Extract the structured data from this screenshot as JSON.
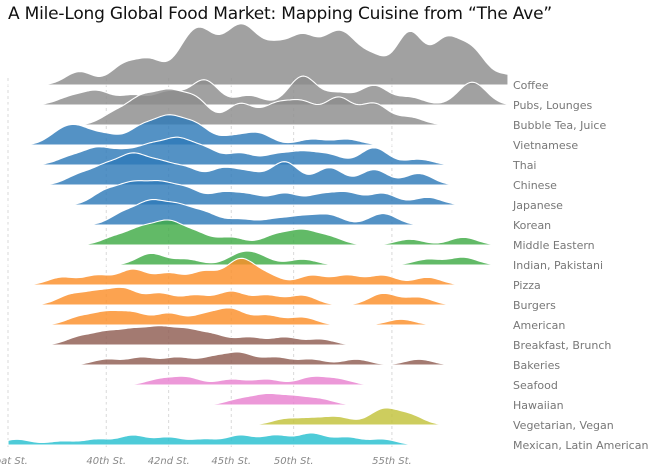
{
  "chart_data": {
    "type": "ridgeline",
    "title": "A Mile-Long Global Food Market: Mapping Cuisine from “The Ave”",
    "xlabel": "",
    "ylabel": "",
    "x_ticks": [
      "Boat St.",
      "40th St.",
      "42nd St.",
      "45th St.",
      "50th St.",
      "55th St."
    ],
    "grid": true,
    "colors": {
      "gray": "#8c8c8c",
      "blue": "#2e7ab8",
      "green": "#3fab45",
      "orange": "#fb8f2a",
      "brown": "#8f5d52",
      "pink": "#e881cf",
      "olive": "#c2c23a",
      "cyan": "#27c0d0"
    },
    "series": [
      {
        "name": "Coffee",
        "color": "gray",
        "peaks": [
          [
            8,
            7
          ],
          [
            13,
            10
          ],
          [
            16,
            12
          ],
          [
            20,
            16
          ],
          [
            22,
            20
          ],
          [
            25,
            18
          ],
          [
            27,
            20
          ],
          [
            30,
            17
          ],
          [
            33,
            22
          ],
          [
            36,
            16
          ],
          [
            38,
            18
          ],
          [
            41,
            13
          ],
          [
            45,
            27
          ],
          [
            49,
            22
          ],
          [
            52,
            17
          ],
          [
            56,
            5
          ]
        ]
      },
      {
        "name": "Pubs, Lounges",
        "color": "gray",
        "peaks": [
          [
            7,
            4
          ],
          [
            10,
            7
          ],
          [
            14,
            5
          ],
          [
            18,
            7
          ],
          [
            22,
            13
          ],
          [
            27,
            5
          ],
          [
            33,
            15
          ],
          [
            37,
            6
          ],
          [
            41,
            10
          ],
          [
            45,
            4
          ],
          [
            52,
            12
          ]
        ]
      },
      {
        "name": "Bubble Tea, Juice",
        "color": "gray",
        "peaks": [
          [
            12,
            6
          ],
          [
            15,
            13
          ],
          [
            18,
            15
          ],
          [
            21,
            13
          ],
          [
            26,
            11
          ],
          [
            30,
            10
          ],
          [
            33,
            11
          ],
          [
            37,
            14
          ],
          [
            41,
            11
          ],
          [
            45,
            4
          ]
        ]
      },
      {
        "name": "Vietnamese",
        "color": "blue",
        "peaks": [
          [
            6,
            6
          ],
          [
            8,
            7
          ],
          [
            11,
            5
          ],
          [
            15,
            9
          ],
          [
            18,
            13
          ],
          [
            21,
            10
          ],
          [
            25,
            4
          ],
          [
            28,
            6
          ],
          [
            34,
            3
          ],
          [
            38,
            3
          ]
        ]
      },
      {
        "name": "Thai",
        "color": "blue",
        "peaks": [
          [
            7,
            4
          ],
          [
            10,
            8
          ],
          [
            13,
            6
          ],
          [
            16,
            9
          ],
          [
            19,
            12
          ],
          [
            22,
            8
          ],
          [
            26,
            6
          ],
          [
            30,
            5
          ],
          [
            33,
            6
          ],
          [
            36,
            5
          ],
          [
            41,
            9
          ],
          [
            46,
            3
          ]
        ]
      },
      {
        "name": "Chinese",
        "color": "blue",
        "peaks": [
          [
            8,
            5
          ],
          [
            11,
            9
          ],
          [
            14,
            14
          ],
          [
            17,
            10
          ],
          [
            20,
            8
          ],
          [
            24,
            8
          ],
          [
            27,
            6
          ],
          [
            31,
            12
          ],
          [
            36,
            9
          ],
          [
            41,
            8
          ],
          [
            46,
            6
          ]
        ]
      },
      {
        "name": "Japanese",
        "color": "blue",
        "peaks": [
          [
            11,
            7
          ],
          [
            14,
            10
          ],
          [
            17,
            10
          ],
          [
            20,
            8
          ],
          [
            24,
            6
          ],
          [
            27,
            5
          ],
          [
            31,
            6
          ],
          [
            35,
            5
          ],
          [
            38,
            6
          ],
          [
            42,
            6
          ],
          [
            47,
            4
          ]
        ]
      },
      {
        "name": "Korean",
        "color": "blue",
        "peaks": [
          [
            13,
            6
          ],
          [
            16,
            11
          ],
          [
            19,
            9
          ],
          [
            22,
            6
          ],
          [
            26,
            3
          ],
          [
            30,
            3
          ],
          [
            33,
            4
          ],
          [
            36,
            5
          ],
          [
            42,
            6
          ]
        ]
      },
      {
        "name": "Middle Eastern",
        "color": "green",
        "peaks": [
          [
            12,
            4
          ],
          [
            15,
            8
          ],
          [
            18,
            11
          ],
          [
            21,
            6
          ],
          [
            25,
            4
          ],
          [
            30,
            5
          ],
          [
            33,
            7
          ],
          [
            36,
            4
          ],
          [
            45,
            3
          ],
          [
            51,
            4
          ]
        ]
      },
      {
        "name": "Indian, Pakistani",
        "color": "green",
        "peaks": [
          [
            16,
            6
          ],
          [
            20,
            3
          ],
          [
            26,
            5
          ],
          [
            28,
            4
          ],
          [
            33,
            3
          ],
          [
            47,
            3
          ],
          [
            51,
            4
          ]
        ]
      },
      {
        "name": "Pizza",
        "color": "orange",
        "peaks": [
          [
            6,
            4
          ],
          [
            10,
            5
          ],
          [
            14,
            8
          ],
          [
            18,
            6
          ],
          [
            22,
            7
          ],
          [
            26,
            13
          ],
          [
            29,
            5
          ],
          [
            34,
            5
          ],
          [
            38,
            5
          ],
          [
            42,
            5
          ],
          [
            47,
            4
          ]
        ]
      },
      {
        "name": "Burgers",
        "color": "orange",
        "peaks": [
          [
            7,
            5
          ],
          [
            10,
            6
          ],
          [
            13,
            8
          ],
          [
            17,
            6
          ],
          [
            21,
            5
          ],
          [
            25,
            7
          ],
          [
            29,
            5
          ],
          [
            33,
            5
          ],
          [
            42,
            6
          ],
          [
            46,
            4
          ]
        ]
      },
      {
        "name": "American",
        "color": "orange",
        "peaks": [
          [
            8,
            4
          ],
          [
            11,
            6
          ],
          [
            14,
            6
          ],
          [
            18,
            6
          ],
          [
            22,
            5
          ],
          [
            25,
            8
          ],
          [
            29,
            5
          ],
          [
            33,
            4
          ],
          [
            44,
            3
          ]
        ]
      },
      {
        "name": "Breakfast, Brunch",
        "color": "brown",
        "peaks": [
          [
            8,
            4
          ],
          [
            11,
            6
          ],
          [
            14,
            7
          ],
          [
            17,
            8
          ],
          [
            20,
            7
          ],
          [
            23,
            5
          ],
          [
            27,
            4
          ],
          [
            31,
            4
          ],
          [
            35,
            3
          ]
        ]
      },
      {
        "name": "Bakeries",
        "color": "brown",
        "peaks": [
          [
            11,
            3
          ],
          [
            15,
            4
          ],
          [
            19,
            4
          ],
          [
            23,
            4
          ],
          [
            26,
            6
          ],
          [
            30,
            4
          ],
          [
            34,
            3
          ],
          [
            39,
            3
          ],
          [
            46,
            3
          ]
        ]
      },
      {
        "name": "Seafood",
        "color": "pink",
        "peaks": [
          [
            17,
            3
          ],
          [
            20,
            4
          ],
          [
            25,
            3
          ],
          [
            29,
            3
          ],
          [
            34,
            4
          ],
          [
            37,
            3
          ]
        ]
      },
      {
        "name": "Hawaiian",
        "color": "pink",
        "peaks": [
          [
            26,
            3
          ],
          [
            29,
            5
          ],
          [
            32,
            4
          ],
          [
            35,
            3
          ]
        ]
      },
      {
        "name": "Vegetarian, Vegan",
        "color": "olive",
        "peaks": [
          [
            31,
            3
          ],
          [
            34,
            3
          ],
          [
            37,
            4
          ],
          [
            42,
            8
          ],
          [
            45,
            5
          ]
        ]
      },
      {
        "name": "Mexican, Latin American",
        "color": "cyan",
        "peaks": [
          [
            1,
            3
          ],
          [
            6,
            2
          ],
          [
            10,
            3
          ],
          [
            14,
            5
          ],
          [
            18,
            4
          ],
          [
            22,
            3
          ],
          [
            26,
            5
          ],
          [
            30,
            5
          ],
          [
            34,
            6
          ],
          [
            38,
            4
          ],
          [
            42,
            3
          ]
        ]
      }
    ]
  }
}
